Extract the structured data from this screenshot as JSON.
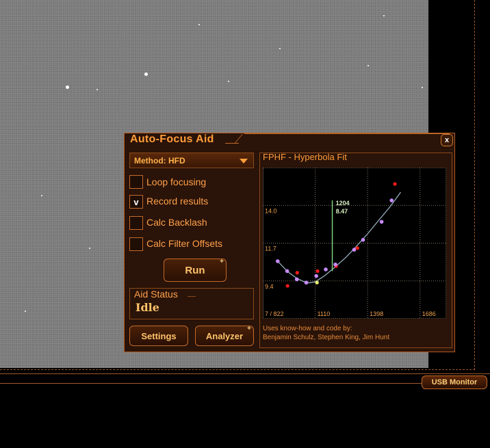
{
  "window": {
    "title": "Auto-Focus Aid",
    "close_label": "x"
  },
  "method": {
    "label": "Method: HFD"
  },
  "options": [
    {
      "label": "Loop focusing",
      "checked": false,
      "mark": ""
    },
    {
      "label": "Record results",
      "checked": true,
      "mark": "v"
    },
    {
      "label": "Calc Backlash",
      "checked": false,
      "mark": ""
    },
    {
      "label": "Calc Filter Offsets",
      "checked": false,
      "mark": ""
    }
  ],
  "run_button": {
    "label": "Run",
    "badge": "+"
  },
  "aid_status": {
    "label": "Aid Status",
    "value": "Idle"
  },
  "settings_button": {
    "label": "Settings"
  },
  "analyzer_button": {
    "label": "Analyzer",
    "badge": "+"
  },
  "graph": {
    "title": "FPHF - Hyperbola Fit",
    "credit_line1": "Uses know-how and code by:",
    "credit_line2": "Benjamin Schulz, Stephen King, Jim Hunt",
    "marker_line1": "1204",
    "marker_line2": "8.47"
  },
  "status_bar": {
    "usb_monitor": "USB Monitor"
  },
  "colors": {
    "accent": "#ff9d3a",
    "panel_bg": "#2a1308",
    "border": "#c46a2a",
    "fit_curve": "#9fb8c8",
    "fit_point": "#c78cff",
    "outlier": "#ff1a1a",
    "marker": "#7fd07f"
  },
  "chart_data": {
    "type": "scatter",
    "title": "FPHF - Hyperbola Fit",
    "xlabel": "",
    "ylabel": "",
    "x_ticks": [
      "7 / 822",
      "1110",
      "1398",
      "1686"
    ],
    "y_ticks": [
      "14.0",
      "11.7",
      "9.4"
    ],
    "xlim": [
      822,
      1830
    ],
    "ylim": [
      7.1,
      16.3
    ],
    "grid": true,
    "series": [
      {
        "points": [
          [
            904,
            10.6
          ],
          [
            956,
            10.0
          ],
          [
            1009,
            9.5
          ],
          [
            1061,
            9.3
          ],
          [
            1116,
            9.7
          ],
          [
            1168,
            10.1
          ],
          [
            1221,
            10.4
          ],
          [
            1324,
            11.3
          ],
          [
            1373,
            11.9
          ],
          [
            1475,
            13.0
          ],
          [
            1530,
            14.3
          ]
        ]
      },
      {
        "points": [
          [
            958,
            9.1
          ],
          [
            1011,
            9.9
          ],
          [
            1123,
            10.0
          ],
          [
            1225,
            10.3
          ],
          [
            1342,
            11.4
          ],
          [
            1548,
            15.3
          ]
        ]
      }
    ],
    "fit_curve": [
      [
        904,
        10.6
      ],
      [
        960,
        9.95
      ],
      [
        1010,
        9.55
      ],
      [
        1050,
        9.35
      ],
      [
        1075,
        9.28
      ],
      [
        1110,
        9.35
      ],
      [
        1160,
        9.7
      ],
      [
        1220,
        10.25
      ],
      [
        1280,
        10.85
      ],
      [
        1340,
        11.55
      ],
      [
        1400,
        12.3
      ],
      [
        1460,
        13.1
      ],
      [
        1520,
        13.9
      ],
      [
        1580,
        14.8
      ]
    ],
    "marker": {
      "x": 1204,
      "y": 8.47
    }
  }
}
